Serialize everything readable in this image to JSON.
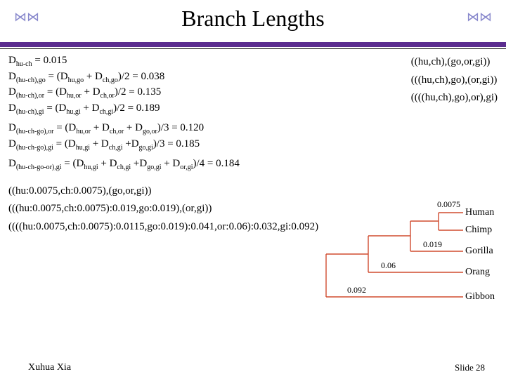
{
  "title": "Branch Lengths",
  "rule_color": "#5b2d8f",
  "equations": {
    "block1": [
      "D<sub>hu-ch</sub> = 0.015",
      "D<sub>(hu-ch),go</sub> = (D<sub>hu,go</sub> + D<sub>ch,go</sub>)/2 = 0.038",
      "D<sub>(hu-ch),or</sub> = (D<sub>hu,or</sub> +  D<sub>ch,or</sub>)/2 = 0.135",
      "D<sub>(hu-ch),gi</sub> = (D<sub>hu,gi</sub>  + D<sub>ch,gi</sub>)/2 = 0.189"
    ],
    "block2": [
      "D<sub>(hu-ch-go),or</sub> = (D<sub>hu,or</sub> + D<sub>ch,or</sub> + D<sub>go,or</sub>)/3 = 0.120",
      "D<sub>(hu-ch-go),gi</sub> = (D<sub>hu,gi</sub> +  D<sub>ch,gi</sub> +D<sub>go,gi</sub>)/3 = 0.185"
    ],
    "block3": [
      "D<sub>(hu-ch-go-or),gi</sub> = (D<sub>hu,gi</sub> +  D<sub>ch,gi</sub> +D<sub>go,gi</sub> + D<sub>or,gi</sub>)/4 = 0.184"
    ]
  },
  "topologies": [
    "((hu,ch),(go,or,gi))",
    "(((hu,ch),go),(or,gi))",
    "((((hu,ch),go),or),gi)"
  ],
  "newick_lines": [
    "((hu:0.0075,ch:0.0075),(go,or,gi))",
    "(((hu:0.0075,ch:0.0075):0.019,go:0.019),(or,gi))",
    "((((hu:0.0075,ch:0.0075):0.0115,go:0.019):0.041,or:0.06):0.032,gi:0.092)"
  ],
  "tree": {
    "stroke": "#d04b2f",
    "taxa": [
      "Human",
      "Chimp",
      "Gorilla",
      "Orang",
      "Gibbon"
    ],
    "branch_labels": {
      "hu_ch": "0.0075",
      "go": "0.019",
      "or": "0.06",
      "gi": "0.092"
    }
  },
  "footer": {
    "author": "Xuhua Xia",
    "slide": "Slide 28"
  }
}
